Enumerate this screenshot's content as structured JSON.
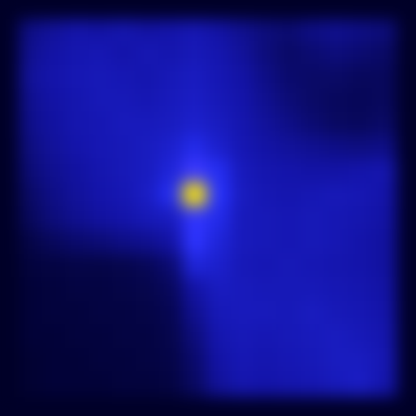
{
  "chart_data": {
    "type": "heatmap",
    "tick_labels": false,
    "cells": [
      [
        0.18,
        0.22,
        0.25,
        0.24,
        0.26,
        0.24,
        0.25,
        0.27,
        0.24,
        0.2,
        0.16,
        0.14,
        0.18,
        0.2,
        0.18,
        0.16
      ],
      [
        0.2,
        0.24,
        0.26,
        0.27,
        0.25,
        0.27,
        0.26,
        0.28,
        0.26,
        0.22,
        0.16,
        0.12,
        0.14,
        0.16,
        0.14,
        0.12
      ],
      [
        0.22,
        0.25,
        0.27,
        0.28,
        0.27,
        0.26,
        0.28,
        0.3,
        0.27,
        0.24,
        0.18,
        0.13,
        0.12,
        0.12,
        0.1,
        0.1
      ],
      [
        0.2,
        0.24,
        0.26,
        0.28,
        0.28,
        0.27,
        0.29,
        0.31,
        0.28,
        0.25,
        0.2,
        0.15,
        0.12,
        0.1,
        0.09,
        0.1
      ],
      [
        0.19,
        0.23,
        0.26,
        0.27,
        0.29,
        0.29,
        0.3,
        0.33,
        0.3,
        0.26,
        0.22,
        0.18,
        0.14,
        0.11,
        0.1,
        0.12
      ],
      [
        0.17,
        0.22,
        0.25,
        0.27,
        0.28,
        0.3,
        0.33,
        0.4,
        0.33,
        0.27,
        0.24,
        0.22,
        0.2,
        0.18,
        0.17,
        0.18
      ],
      [
        0.15,
        0.2,
        0.23,
        0.26,
        0.28,
        0.3,
        0.36,
        0.55,
        0.42,
        0.29,
        0.26,
        0.25,
        0.24,
        0.24,
        0.25,
        0.26
      ],
      [
        0.12,
        0.18,
        0.22,
        0.25,
        0.27,
        0.31,
        0.42,
        1.0,
        0.45,
        0.3,
        0.27,
        0.26,
        0.27,
        0.28,
        0.27,
        0.25
      ],
      [
        0.1,
        0.16,
        0.2,
        0.23,
        0.25,
        0.28,
        0.3,
        0.5,
        0.4,
        0.29,
        0.28,
        0.27,
        0.28,
        0.27,
        0.26,
        0.24
      ],
      [
        0.06,
        0.1,
        0.13,
        0.15,
        0.18,
        0.2,
        0.24,
        0.48,
        0.36,
        0.29,
        0.28,
        0.27,
        0.28,
        0.27,
        0.25,
        0.23
      ],
      [
        0.04,
        0.05,
        0.06,
        0.06,
        0.07,
        0.09,
        0.14,
        0.36,
        0.33,
        0.28,
        0.27,
        0.28,
        0.27,
        0.26,
        0.25,
        0.23
      ],
      [
        0.03,
        0.04,
        0.05,
        0.05,
        0.06,
        0.07,
        0.1,
        0.24,
        0.3,
        0.29,
        0.28,
        0.28,
        0.28,
        0.27,
        0.26,
        0.24
      ],
      [
        0.03,
        0.04,
        0.04,
        0.05,
        0.05,
        0.06,
        0.08,
        0.2,
        0.28,
        0.29,
        0.29,
        0.28,
        0.3,
        0.28,
        0.27,
        0.25
      ],
      [
        0.03,
        0.03,
        0.04,
        0.04,
        0.05,
        0.05,
        0.07,
        0.16,
        0.26,
        0.28,
        0.27,
        0.28,
        0.29,
        0.3,
        0.28,
        0.26
      ],
      [
        0.02,
        0.03,
        0.03,
        0.04,
        0.04,
        0.05,
        0.06,
        0.13,
        0.24,
        0.27,
        0.26,
        0.27,
        0.28,
        0.3,
        0.3,
        0.27
      ],
      [
        0.02,
        0.03,
        0.03,
        0.03,
        0.04,
        0.04,
        0.05,
        0.11,
        0.22,
        0.26,
        0.25,
        0.26,
        0.27,
        0.29,
        0.31,
        0.26
      ]
    ]
  }
}
